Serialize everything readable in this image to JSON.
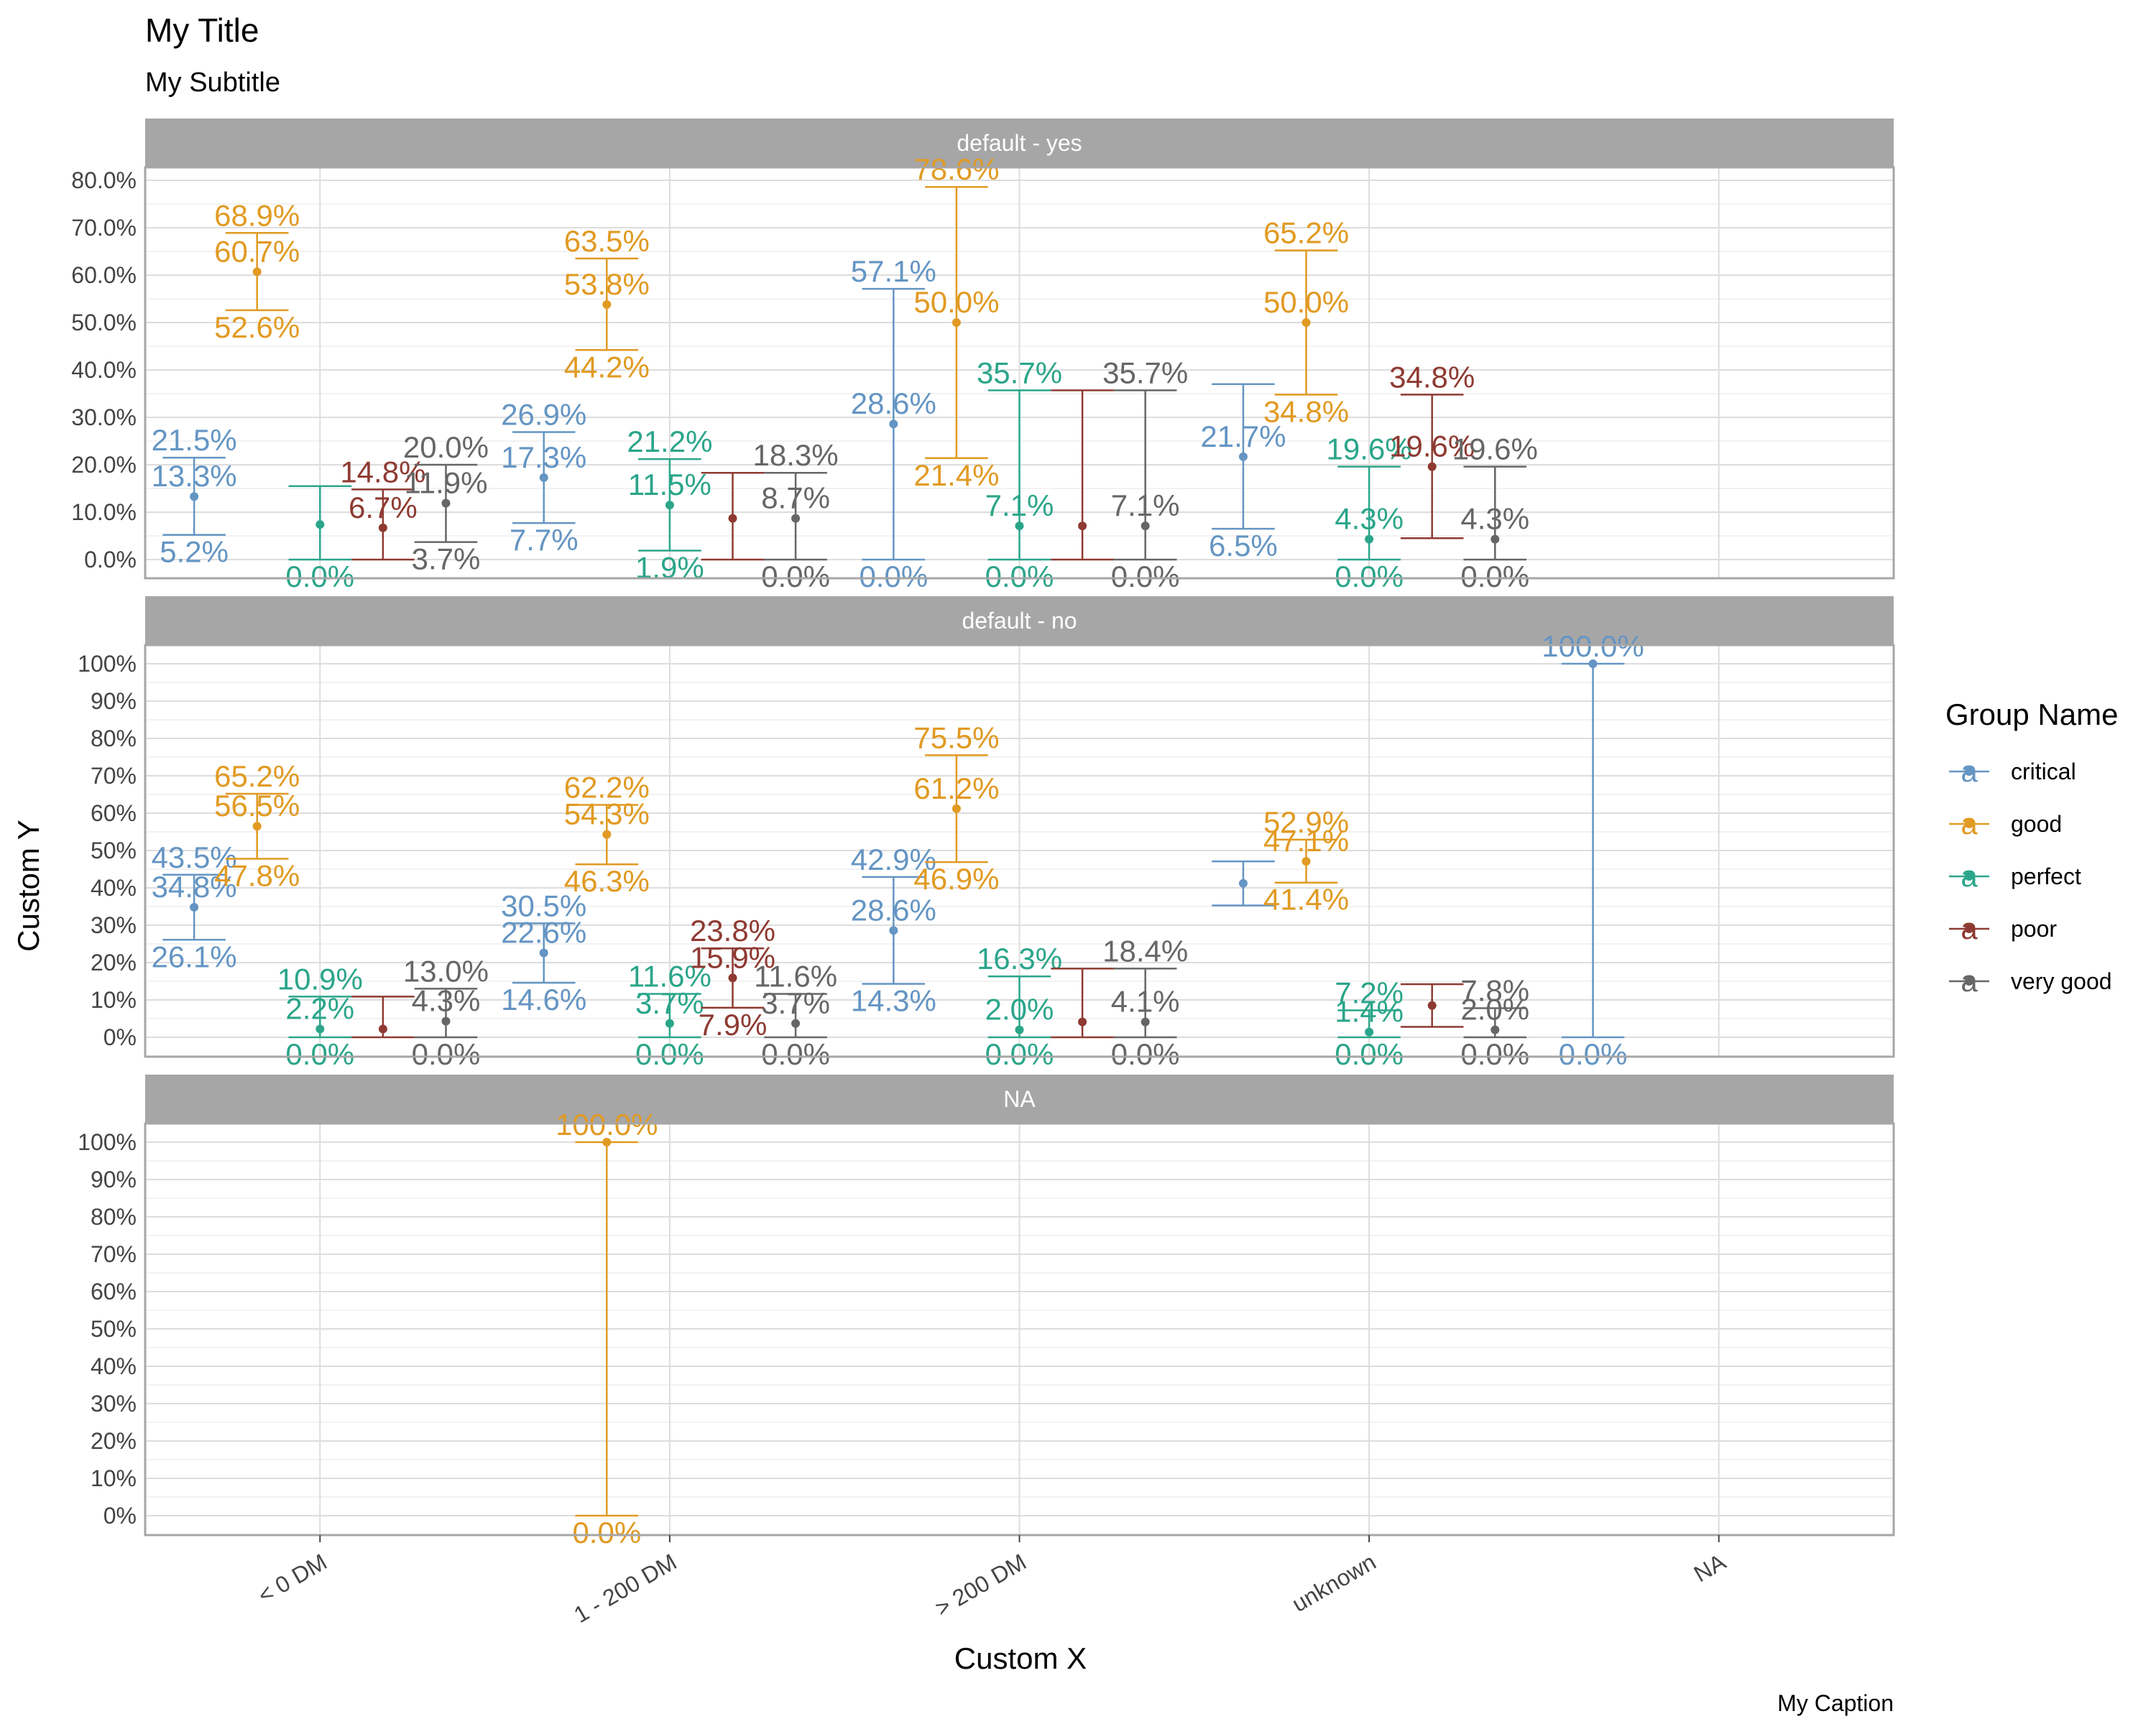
{
  "title": "My Title",
  "subtitle": "My Subtitle",
  "caption": "My Caption",
  "xlabel": "Custom X",
  "ylabel": "Custom Y",
  "legend": {
    "title": "Group Name",
    "key_glyph": "a",
    "position": "right",
    "items": [
      {
        "name": "critical",
        "color": "#6495C3"
      },
      {
        "name": "good",
        "color": "#E19A22"
      },
      {
        "name": "perfect",
        "color": "#2BA58A"
      },
      {
        "name": "poor",
        "color": "#8E3A32"
      },
      {
        "name": "very good",
        "color": "#666666"
      }
    ]
  },
  "colors": {
    "strip_background": "#A6A6A6",
    "panel_border": "#A6A6A6",
    "grid_major": "#DDDDDD",
    "grid_minor": "#EEEEEE"
  },
  "chart_data": {
    "type": "errorbar",
    "categories": [
      "< 0 DM",
      "1 - 200 DM",
      "> 200 DM",
      "unknown",
      "NA"
    ],
    "groups": [
      "critical",
      "good",
      "perfect",
      "poor",
      "very good"
    ],
    "grid": true,
    "panels": [
      {
        "strip": "default - yes",
        "ylim": [
          0,
          0.8
        ],
        "yticks": [
          0,
          0.1,
          0.2,
          0.3,
          0.4,
          0.5,
          0.6,
          0.7,
          0.8
        ],
        "ytick_labels": [
          "0.0%",
          "10.0%",
          "20.0%",
          "30.0%",
          "40.0%",
          "50.0%",
          "60.0%",
          "70.0%",
          "80.0%"
        ],
        "series": [
          {
            "name": "critical",
            "points": [
              {
                "x": "< 0 DM",
                "lower": 0.052,
                "value": 0.133,
                "upper": 0.215,
                "labels": [
                  "5.2%",
                  "13.3%",
                  "21.5%"
                ]
              },
              {
                "x": "1 - 200 DM",
                "lower": 0.077,
                "value": 0.173,
                "upper": 0.269,
                "labels": [
                  "7.7%",
                  "17.3%",
                  "26.9%"
                ]
              },
              {
                "x": "> 200 DM",
                "lower": 0.0,
                "value": 0.286,
                "upper": 0.571,
                "labels": [
                  "0.0%",
                  "28.6%",
                  "57.1%"
                ]
              },
              {
                "x": "unknown",
                "lower": 0.065,
                "value": 0.217,
                "upper": 0.37,
                "labels": [
                  "6.5%",
                  "21.7%",
                  ""
                ]
              }
            ]
          },
          {
            "name": "good",
            "points": [
              {
                "x": "< 0 DM",
                "lower": 0.526,
                "value": 0.607,
                "upper": 0.689,
                "labels": [
                  "52.6%",
                  "60.7%",
                  "68.9%"
                ]
              },
              {
                "x": "1 - 200 DM",
                "lower": 0.442,
                "value": 0.538,
                "upper": 0.635,
                "labels": [
                  "44.2%",
                  "53.8%",
                  "63.5%"
                ]
              },
              {
                "x": "> 200 DM",
                "lower": 0.214,
                "value": 0.5,
                "upper": 0.786,
                "labels": [
                  "21.4%",
                  "50.0%",
                  "78.6%"
                ]
              },
              {
                "x": "unknown",
                "lower": 0.348,
                "value": 0.5,
                "upper": 0.652,
                "labels": [
                  "34.8%",
                  "50.0%",
                  "65.2%"
                ]
              }
            ]
          },
          {
            "name": "perfect",
            "points": [
              {
                "x": "< 0 DM",
                "lower": 0.0,
                "value": 0.074,
                "upper": 0.155,
                "labels": [
                  "0.0%",
                  "",
                  ""
                ]
              },
              {
                "x": "1 - 200 DM",
                "lower": 0.019,
                "value": 0.115,
                "upper": 0.212,
                "labels": [
                  "1.9%",
                  "11.5%",
                  "21.2%"
                ]
              },
              {
                "x": "> 200 DM",
                "lower": 0.0,
                "value": 0.071,
                "upper": 0.357,
                "labels": [
                  "0.0%",
                  "7.1%",
                  "35.7%"
                ]
              },
              {
                "x": "unknown",
                "lower": 0.0,
                "value": 0.043,
                "upper": 0.196,
                "labels": [
                  "0.0%",
                  "4.3%",
                  "19.6%"
                ]
              }
            ]
          },
          {
            "name": "poor",
            "points": [
              {
                "x": "< 0 DM",
                "lower": 0.0,
                "value": 0.067,
                "upper": 0.148,
                "labels": [
                  "",
                  "6.7%",
                  "14.8%"
                ]
              },
              {
                "x": "1 - 200 DM",
                "lower": 0.0,
                "value": 0.087,
                "upper": 0.183,
                "labels": [
                  "",
                  "",
                  ""
                ]
              },
              {
                "x": "> 200 DM",
                "lower": 0.0,
                "value": 0.071,
                "upper": 0.357,
                "labels": [
                  "",
                  "",
                  ""
                ]
              },
              {
                "x": "unknown",
                "lower": 0.045,
                "value": 0.196,
                "upper": 0.348,
                "labels": [
                  "",
                  "19.6%",
                  "34.8%"
                ]
              }
            ]
          },
          {
            "name": "very good",
            "points": [
              {
                "x": "< 0 DM",
                "lower": 0.037,
                "value": 0.119,
                "upper": 0.2,
                "labels": [
                  "3.7%",
                  "11.9%",
                  "20.0%"
                ]
              },
              {
                "x": "1 - 200 DM",
                "lower": 0.0,
                "value": 0.087,
                "upper": 0.183,
                "labels": [
                  "0.0%",
                  "8.7%",
                  "18.3%"
                ]
              },
              {
                "x": "> 200 DM",
                "lower": 0.0,
                "value": 0.071,
                "upper": 0.357,
                "labels": [
                  "0.0%",
                  "7.1%",
                  "35.7%"
                ]
              },
              {
                "x": "unknown",
                "lower": 0.0,
                "value": 0.043,
                "upper": 0.196,
                "labels": [
                  "0.0%",
                  "4.3%",
                  "19.6%"
                ]
              }
            ]
          }
        ]
      },
      {
        "strip": "default - no",
        "ylim": [
          0,
          1
        ],
        "yticks": [
          0,
          0.1,
          0.2,
          0.3,
          0.4,
          0.5,
          0.6,
          0.7,
          0.8,
          0.9,
          1.0
        ],
        "ytick_labels": [
          "0%",
          "10%",
          "20%",
          "30%",
          "40%",
          "50%",
          "60%",
          "70%",
          "80%",
          "90%",
          "100%"
        ],
        "series": [
          {
            "name": "critical",
            "points": [
              {
                "x": "< 0 DM",
                "lower": 0.261,
                "value": 0.348,
                "upper": 0.435,
                "labels": [
                  "26.1%",
                  "34.8%",
                  "43.5%"
                ]
              },
              {
                "x": "1 - 200 DM",
                "lower": 0.146,
                "value": 0.226,
                "upper": 0.305,
                "labels": [
                  "14.6%",
                  "22.6%",
                  "30.5%"
                ]
              },
              {
                "x": "> 200 DM",
                "lower": 0.143,
                "value": 0.286,
                "upper": 0.429,
                "labels": [
                  "14.3%",
                  "28.6%",
                  "42.9%"
                ]
              },
              {
                "x": "unknown",
                "lower": 0.353,
                "value": 0.412,
                "upper": 0.471,
                "labels": [
                  "",
                  "",
                  ""
                ]
              },
              {
                "x": "NA",
                "lower": 0.0,
                "value": 1.0,
                "upper": 1.0,
                "labels": [
                  "0.0%",
                  "",
                  "100.0%"
                ]
              }
            ]
          },
          {
            "name": "good",
            "points": [
              {
                "x": "< 0 DM",
                "lower": 0.478,
                "value": 0.565,
                "upper": 0.652,
                "labels": [
                  "47.8%",
                  "56.5%",
                  "65.2%"
                ]
              },
              {
                "x": "1 - 200 DM",
                "lower": 0.463,
                "value": 0.543,
                "upper": 0.622,
                "labels": [
                  "46.3%",
                  "54.3%",
                  "62.2%"
                ]
              },
              {
                "x": "> 200 DM",
                "lower": 0.469,
                "value": 0.612,
                "upper": 0.755,
                "labels": [
                  "46.9%",
                  "61.2%",
                  "75.5%"
                ]
              },
              {
                "x": "unknown",
                "lower": 0.414,
                "value": 0.471,
                "upper": 0.529,
                "labels": [
                  "41.4%",
                  "47.1%",
                  "52.9%"
                ]
              }
            ]
          },
          {
            "name": "perfect",
            "points": [
              {
                "x": "< 0 DM",
                "lower": 0.0,
                "value": 0.022,
                "upper": 0.109,
                "labels": [
                  "0.0%",
                  "2.2%",
                  "10.9%"
                ]
              },
              {
                "x": "1 - 200 DM",
                "lower": 0.0,
                "value": 0.037,
                "upper": 0.116,
                "labels": [
                  "0.0%",
                  "3.7%",
                  "11.6%"
                ]
              },
              {
                "x": "> 200 DM",
                "lower": 0.0,
                "value": 0.02,
                "upper": 0.163,
                "labels": [
                  "0.0%",
                  "2.0%",
                  "16.3%"
                ]
              },
              {
                "x": "unknown",
                "lower": 0.0,
                "value": 0.014,
                "upper": 0.072,
                "labels": [
                  "0.0%",
                  "1.4%",
                  "7.2%"
                ]
              }
            ]
          },
          {
            "name": "poor",
            "points": [
              {
                "x": "< 0 DM",
                "lower": 0.0,
                "value": 0.022,
                "upper": 0.109,
                "labels": [
                  "",
                  "",
                  ""
                ]
              },
              {
                "x": "1 - 200 DM",
                "lower": 0.079,
                "value": 0.159,
                "upper": 0.238,
                "labels": [
                  "7.9%",
                  "15.9%",
                  "23.8%"
                ]
              },
              {
                "x": "> 200 DM",
                "lower": 0.0,
                "value": 0.041,
                "upper": 0.184,
                "labels": [
                  "",
                  "",
                  ""
                ]
              },
              {
                "x": "unknown",
                "lower": 0.028,
                "value": 0.085,
                "upper": 0.142,
                "labels": [
                  "",
                  "",
                  ""
                ]
              }
            ]
          },
          {
            "name": "very good",
            "points": [
              {
                "x": "< 0 DM",
                "lower": 0.0,
                "value": 0.043,
                "upper": 0.13,
                "labels": [
                  "0.0%",
                  "4.3%",
                  "13.0%"
                ]
              },
              {
                "x": "1 - 200 DM",
                "lower": 0.0,
                "value": 0.037,
                "upper": 0.116,
                "labels": [
                  "0.0%",
                  "3.7%",
                  "11.6%"
                ]
              },
              {
                "x": "> 200 DM",
                "lower": 0.0,
                "value": 0.041,
                "upper": 0.184,
                "labels": [
                  "0.0%",
                  "4.1%",
                  "18.4%"
                ]
              },
              {
                "x": "unknown",
                "lower": 0.0,
                "value": 0.02,
                "upper": 0.078,
                "labels": [
                  "0.0%",
                  "2.0%",
                  "7.8%"
                ]
              }
            ]
          }
        ]
      },
      {
        "strip": "NA",
        "ylim": [
          0,
          1
        ],
        "yticks": [
          0,
          0.1,
          0.2,
          0.3,
          0.4,
          0.5,
          0.6,
          0.7,
          0.8,
          0.9,
          1.0
        ],
        "ytick_labels": [
          "0%",
          "10%",
          "20%",
          "30%",
          "40%",
          "50%",
          "60%",
          "70%",
          "80%",
          "90%",
          "100%"
        ],
        "series": [
          {
            "name": "good",
            "points": [
              {
                "x": "1 - 200 DM",
                "lower": 0.0,
                "value": 1.0,
                "upper": 1.0,
                "labels": [
                  "0.0%",
                  "",
                  "100.0%"
                ]
              }
            ]
          }
        ]
      }
    ]
  }
}
